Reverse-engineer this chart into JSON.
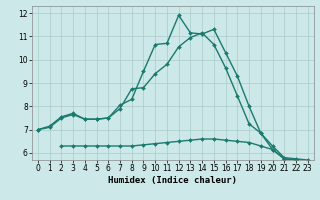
{
  "xlabel": "Humidex (Indice chaleur)",
  "bg_color": "#cce8e8",
  "line_color": "#1a7a6e",
  "grid_color": "#aacccc",
  "grid_color_minor": "#bbdddd",
  "xlim": [
    -0.5,
    23.5
  ],
  "ylim": [
    5.7,
    12.3
  ],
  "yticks": [
    6,
    7,
    8,
    9,
    10,
    11,
    12
  ],
  "xticks": [
    0,
    1,
    2,
    3,
    4,
    5,
    6,
    7,
    8,
    9,
    10,
    11,
    12,
    13,
    14,
    15,
    16,
    17,
    18,
    19,
    20,
    21,
    22,
    23
  ],
  "line1_x": [
    0,
    1,
    2,
    3,
    4,
    5,
    6,
    7,
    8,
    9,
    10,
    11,
    12,
    13,
    14,
    15,
    16,
    17,
    18,
    19,
    20,
    21,
    22,
    23
  ],
  "line1_y": [
    7.0,
    7.15,
    7.55,
    7.7,
    7.45,
    7.45,
    7.5,
    8.05,
    8.3,
    9.5,
    10.65,
    10.7,
    11.9,
    11.15,
    11.1,
    11.3,
    10.3,
    9.3,
    8.0,
    6.85,
    6.3,
    5.8,
    5.75,
    5.7
  ],
  "line2_x": [
    0,
    1,
    2,
    3,
    4,
    5,
    6,
    7,
    8,
    9,
    10,
    11,
    12,
    13,
    14,
    15,
    16,
    17,
    18,
    19,
    20,
    21,
    22,
    23
  ],
  "line2_y": [
    7.0,
    7.1,
    7.5,
    7.65,
    7.45,
    7.45,
    7.5,
    7.9,
    8.75,
    8.8,
    9.4,
    9.8,
    10.55,
    10.95,
    11.15,
    10.65,
    9.65,
    8.45,
    7.25,
    6.85,
    6.15,
    5.75,
    5.7,
    5.65
  ],
  "line3_x": [
    2,
    3,
    4,
    5,
    6,
    7,
    8,
    9,
    10,
    11,
    12,
    13,
    14,
    15,
    16,
    17,
    18,
    19,
    20,
    21,
    22,
    23
  ],
  "line3_y": [
    6.3,
    6.3,
    6.3,
    6.3,
    6.3,
    6.3,
    6.3,
    6.35,
    6.4,
    6.45,
    6.5,
    6.55,
    6.6,
    6.6,
    6.55,
    6.5,
    6.45,
    6.3,
    6.15,
    5.75,
    5.7,
    5.65
  ],
  "marker": "D",
  "markersize": 2.0,
  "linewidth": 1.0,
  "tick_fontsize": 5.5,
  "label_fontsize": 6.5
}
